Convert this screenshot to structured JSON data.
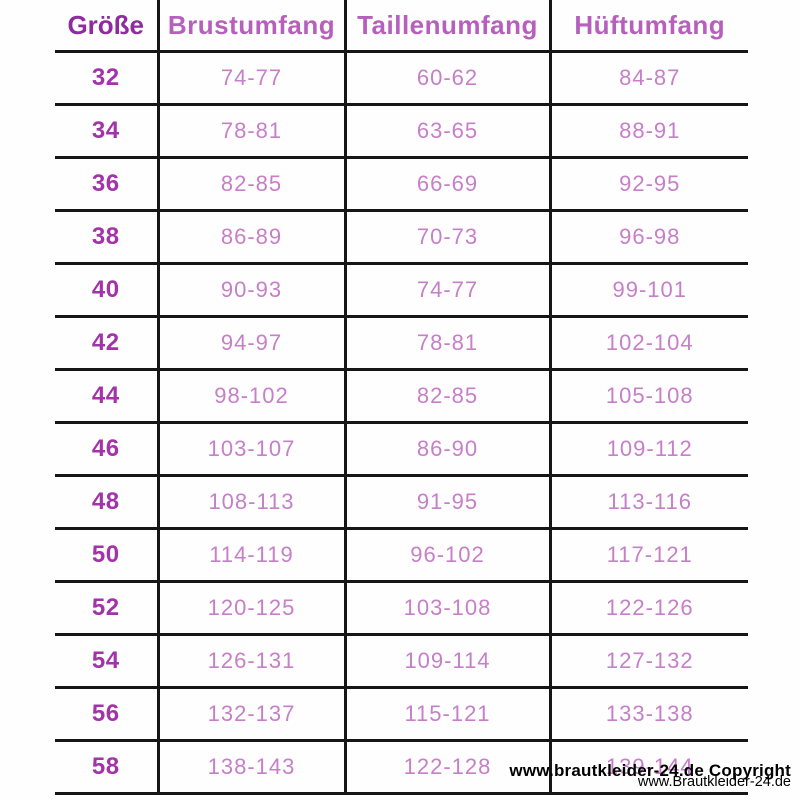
{
  "chart_data": {
    "type": "table",
    "columns": [
      "Größe",
      "Brustumfang",
      "Taillenumfang",
      "Hüftumfang"
    ],
    "rows": [
      [
        "32",
        "74-77",
        "60-62",
        "84-87"
      ],
      [
        "34",
        "78-81",
        "63-65",
        "88-91"
      ],
      [
        "36",
        "82-85",
        "66-69",
        "92-95"
      ],
      [
        "38",
        "86-89",
        "70-73",
        "96-98"
      ],
      [
        "40",
        "90-93",
        "74-77",
        "99-101"
      ],
      [
        "42",
        "94-97",
        "78-81",
        "102-104"
      ],
      [
        "44",
        "98-102",
        "82-85",
        "105-108"
      ],
      [
        "46",
        "103-107",
        "86-90",
        "109-112"
      ],
      [
        "48",
        "108-113",
        "91-95",
        "113-116"
      ],
      [
        "50",
        "114-119",
        "96-102",
        "117-121"
      ],
      [
        "52",
        "120-125",
        "103-108",
        "122-126"
      ],
      [
        "54",
        "126-131",
        "109-114",
        "127-132"
      ],
      [
        "56",
        "132-137",
        "115-121",
        "133-138"
      ],
      [
        "58",
        "138-143",
        "122-128",
        "139-144"
      ]
    ]
  },
  "watermark": {
    "line1": "www.brautkleider-24.de Copyright",
    "line2": "www.Brautkleider-24.de"
  },
  "colors": {
    "background": "#fefefe",
    "grid-line": "#161616",
    "size-header": "#8e2b9e",
    "measure-header": "#b75fbd",
    "size-value": "#a233a8",
    "measure-value": "#c67fc8",
    "watermark": "#000000"
  }
}
